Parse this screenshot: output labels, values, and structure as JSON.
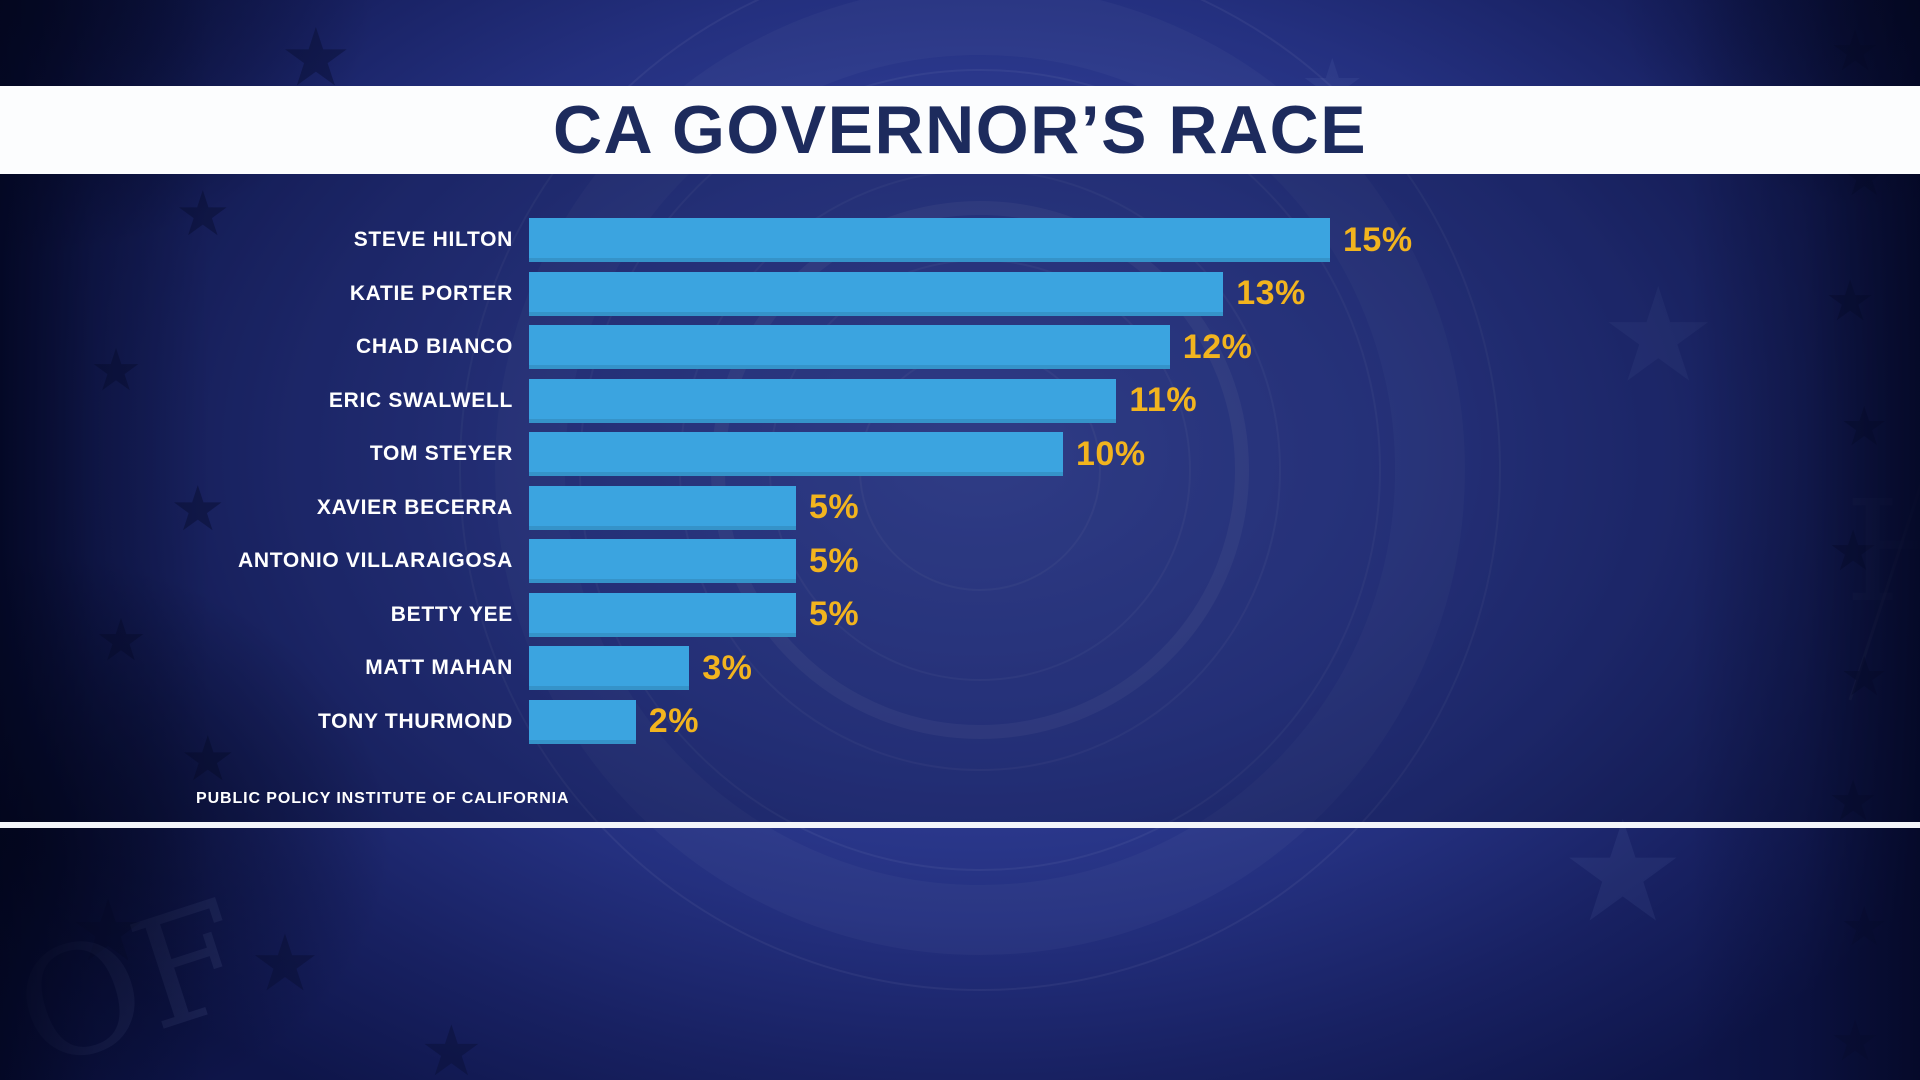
{
  "header": {
    "title": "CA GOVERNOR’S RACE"
  },
  "footer": {
    "source_label": "PUBLIC POLICY INSTITUTE OF CALIFORNIA"
  },
  "colors": {
    "title_text": "#1D2B5D",
    "banner_bg": "#FCFDFE",
    "bar": "#3BA4E0",
    "value_label": "#F2B41E",
    "candidate_label": "#FFFFFF"
  },
  "chart_data": {
    "type": "bar",
    "orientation": "horizontal",
    "title": "CA GOVERNOR’S RACE",
    "categories": [
      "STEVE HILTON",
      "KATIE PORTER",
      "CHAD BIANCO",
      "ERIC SWALWELL",
      "TOM STEYER",
      "XAVIER BECERRA",
      "ANTONIO VILLARAIGOSA",
      "BETTY YEE",
      "MATT MAHAN",
      "TONY THURMOND"
    ],
    "values": [
      15,
      13,
      12,
      11,
      10,
      5,
      5,
      5,
      3,
      2
    ],
    "value_labels": [
      "15%",
      "13%",
      "12%",
      "11%",
      "10%",
      "5%",
      "5%",
      "5%",
      "3%",
      "2%"
    ],
    "unit": "%",
    "xlim": [
      0,
      15
    ],
    "grid": false,
    "legend_position": "none",
    "source": "PUBLIC POLICY INSTITUTE OF CALIFORNIA"
  }
}
